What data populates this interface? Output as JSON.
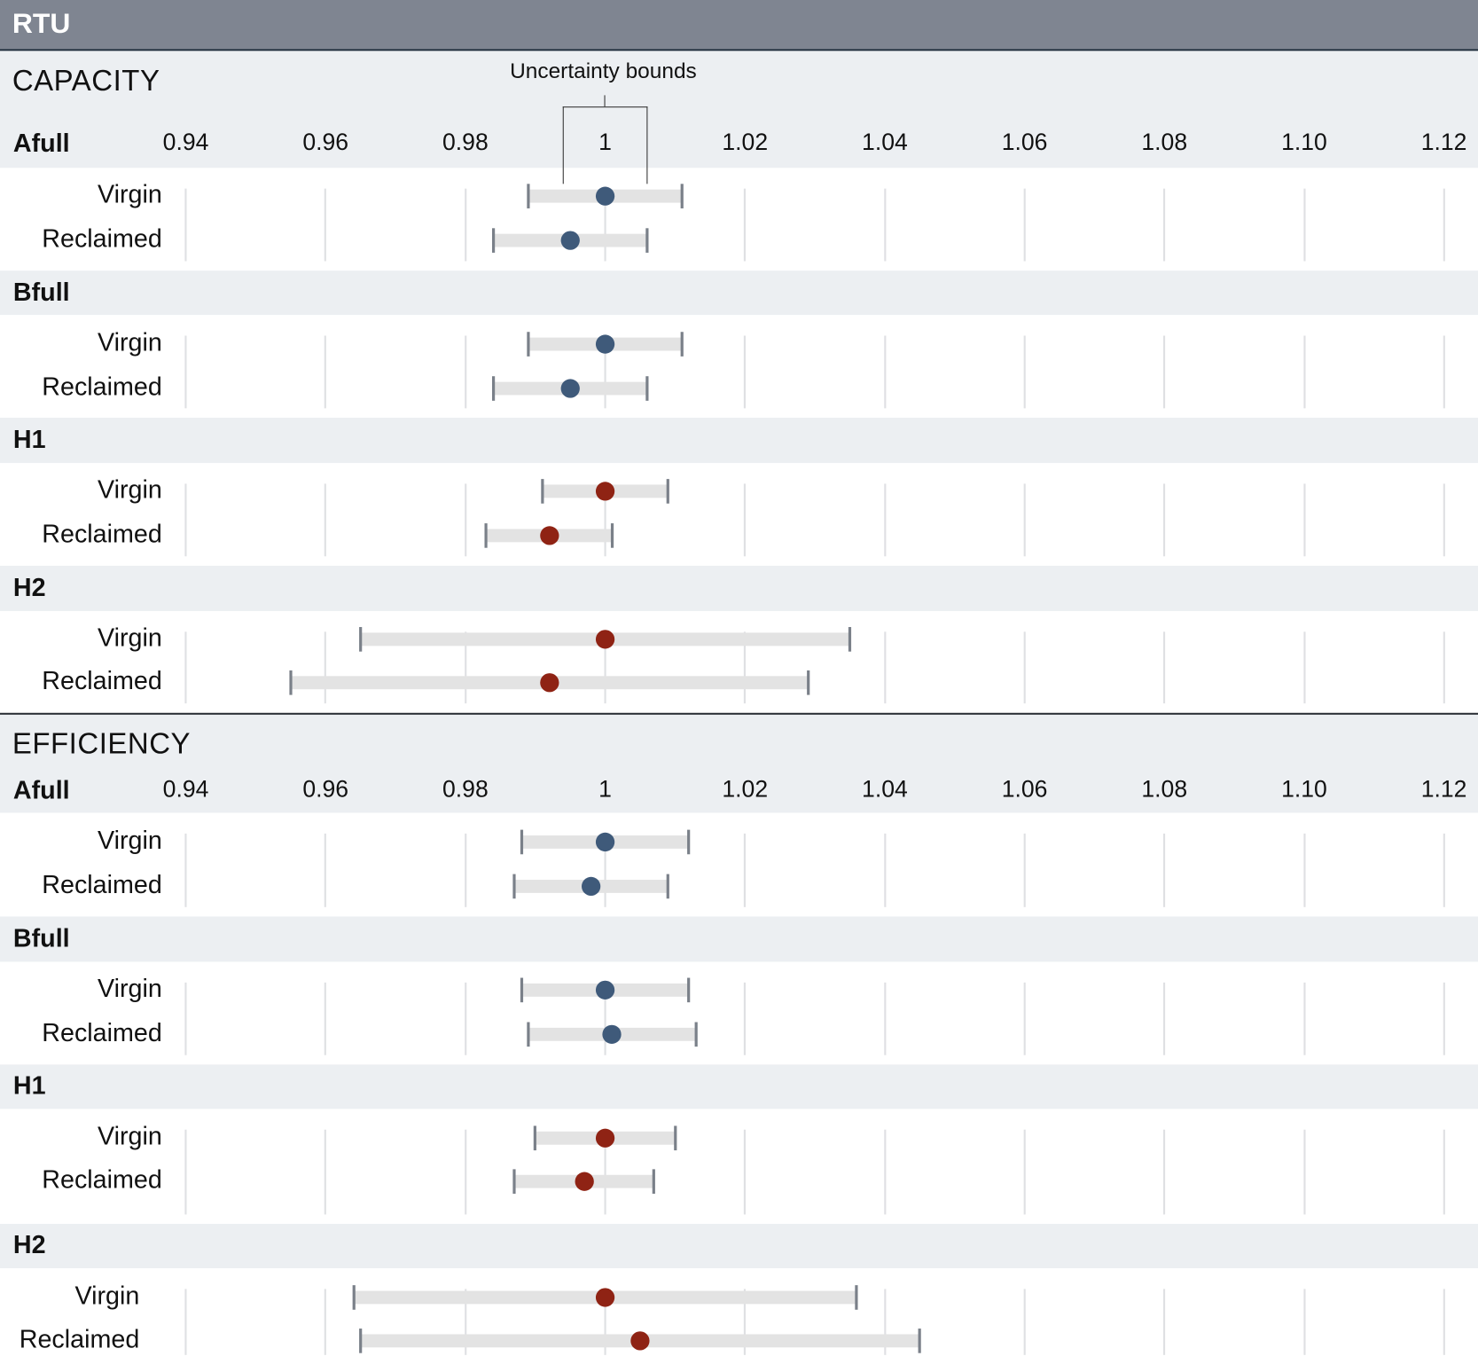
{
  "header": {
    "title": "RTU"
  },
  "colors": {
    "header_bg": "#7f8591",
    "band_bg": "#eceff2",
    "blue_point": "#3f5a7a",
    "red_point": "#8f2314",
    "bar": "#e3e3e3",
    "cap": "#7a8089"
  },
  "chart_data": [
    {
      "type": "dot-range",
      "title": "CAPACITY",
      "annotation": "Uncertainty bounds",
      "x_ticks": [
        "0.94",
        "0.96",
        "0.98",
        "1",
        "1.02",
        "1.04",
        "1.06",
        "1.08",
        "1.10",
        "1.12"
      ],
      "xlim": [
        0.94,
        1.12
      ],
      "grid": true,
      "groups": [
        {
          "name": "Afull",
          "color": "blue",
          "rows": [
            {
              "label": "Virgin",
              "value": 1.0,
              "low": 0.989,
              "high": 1.011
            },
            {
              "label": "Reclaimed",
              "value": 0.995,
              "low": 0.984,
              "high": 1.006
            }
          ]
        },
        {
          "name": "Bfull",
          "color": "blue",
          "rows": [
            {
              "label": "Virgin",
              "value": 1.0,
              "low": 0.989,
              "high": 1.011
            },
            {
              "label": "Reclaimed",
              "value": 0.995,
              "low": 0.984,
              "high": 1.006
            }
          ]
        },
        {
          "name": "H1",
          "color": "red",
          "rows": [
            {
              "label": "Virgin",
              "value": 1.0,
              "low": 0.991,
              "high": 1.009
            },
            {
              "label": "Reclaimed",
              "value": 0.992,
              "low": 0.983,
              "high": 1.001
            }
          ]
        },
        {
          "name": "H2",
          "color": "red",
          "rows": [
            {
              "label": "Virgin",
              "value": 1.0,
              "low": 0.965,
              "high": 1.035
            },
            {
              "label": "Reclaimed",
              "value": 0.992,
              "low": 0.955,
              "high": 1.029
            }
          ]
        }
      ]
    },
    {
      "type": "dot-range",
      "title": "EFFICIENCY",
      "x_ticks": [
        "0.94",
        "0.96",
        "0.98",
        "1",
        "1.02",
        "1.04",
        "1.06",
        "1.08",
        "1.10",
        "1.12"
      ],
      "xlim": [
        0.94,
        1.12
      ],
      "grid": true,
      "groups": [
        {
          "name": "Afull",
          "color": "blue",
          "rows": [
            {
              "label": "Virgin",
              "value": 1.0,
              "low": 0.988,
              "high": 1.012
            },
            {
              "label": "Reclaimed",
              "value": 0.998,
              "low": 0.987,
              "high": 1.009
            }
          ]
        },
        {
          "name": "Bfull",
          "color": "blue",
          "rows": [
            {
              "label": "Virgin",
              "value": 1.0,
              "low": 0.988,
              "high": 1.012
            },
            {
              "label": "Reclaimed",
              "value": 1.001,
              "low": 0.989,
              "high": 1.013
            }
          ]
        },
        {
          "name": "H1",
          "color": "red",
          "rows": [
            {
              "label": "Virgin",
              "value": 1.0,
              "low": 0.99,
              "high": 1.01
            },
            {
              "label": "Reclaimed",
              "value": 0.997,
              "low": 0.987,
              "high": 1.007
            }
          ]
        },
        {
          "name": "H2",
          "color": "red",
          "rows": [
            {
              "label": "Virgin",
              "value": 1.0,
              "low": 0.964,
              "high": 1.036
            },
            {
              "label": "Reclaimed",
              "value": 1.005,
              "low": 0.965,
              "high": 1.045
            }
          ]
        }
      ]
    }
  ]
}
